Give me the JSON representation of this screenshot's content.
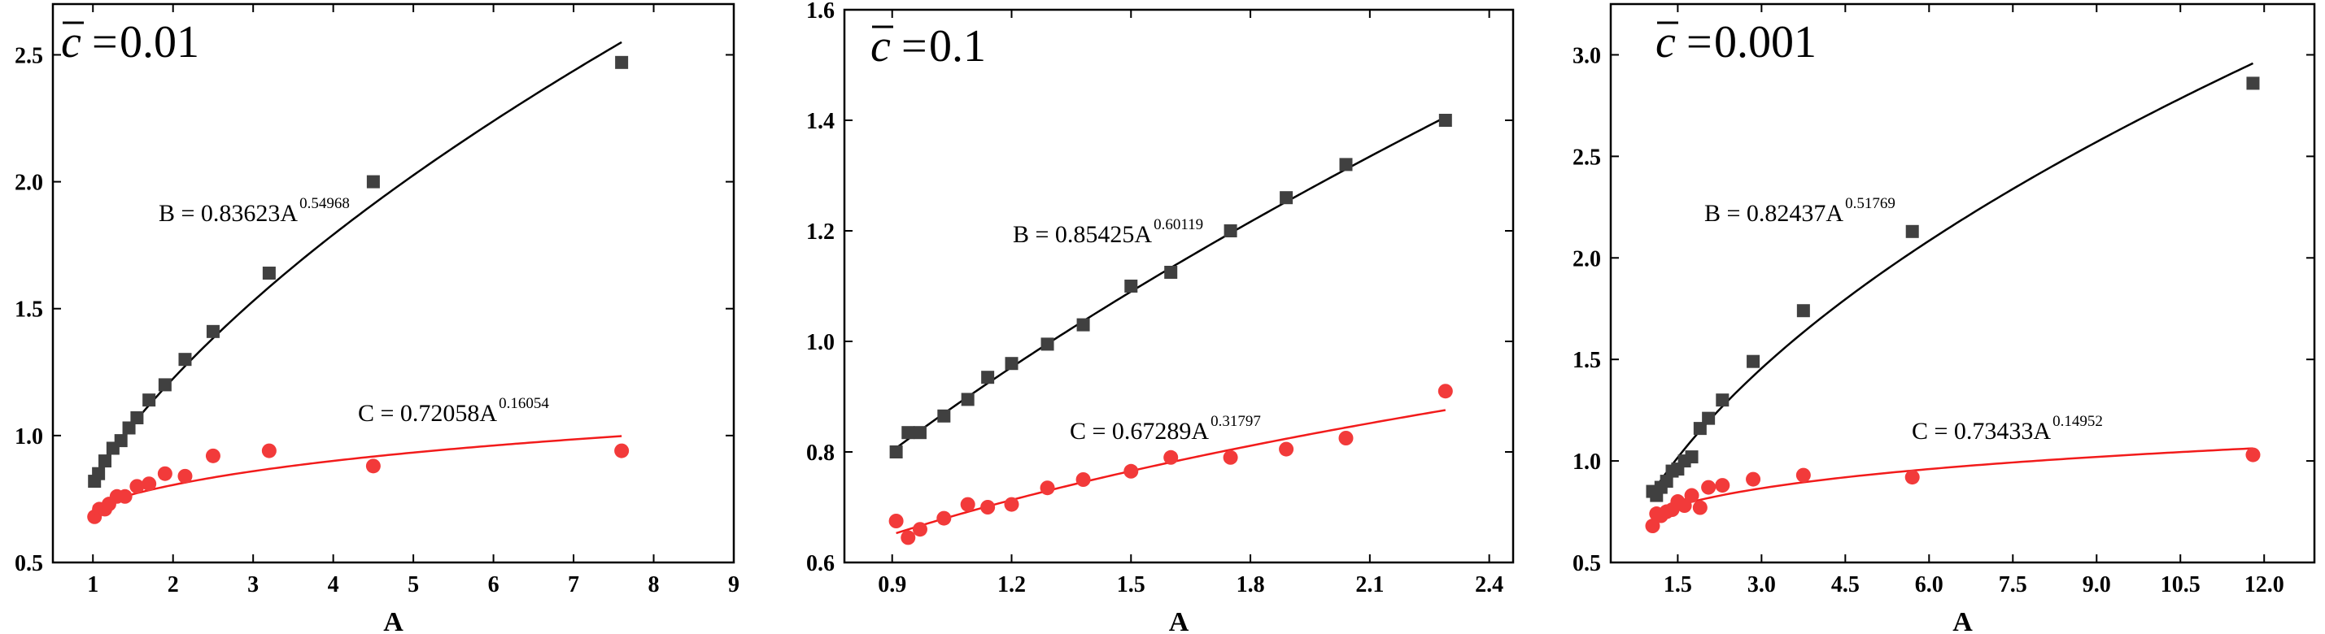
{
  "chart_data": [
    {
      "type": "scatter",
      "title": "0.01",
      "title_symbol": "c",
      "xlabel": "A",
      "ylabel": "",
      "xlim": [
        0.5,
        9.0
      ],
      "ylim": [
        0.5,
        2.7
      ],
      "xticks": [
        1,
        2,
        3,
        4,
        5,
        6,
        7,
        8,
        9
      ],
      "xtick_labels": [
        "1",
        "2",
        "3",
        "4",
        "5",
        "6",
        "7",
        "8",
        "9"
      ],
      "yticks": [
        0.5,
        1.0,
        1.5,
        2.0,
        2.5
      ],
      "ytick_labels": [
        "0.5",
        "1.0",
        "1.5",
        "2.0",
        "2.5"
      ],
      "series": [
        {
          "name": "B",
          "marker": "square",
          "color": "#404040",
          "x": [
            1.02,
            1.07,
            1.15,
            1.25,
            1.35,
            1.45,
            1.55,
            1.7,
            1.9,
            2.15,
            2.5,
            3.2,
            4.5,
            7.6
          ],
          "y": [
            0.82,
            0.85,
            0.9,
            0.95,
            0.98,
            1.03,
            1.07,
            1.14,
            1.2,
            1.3,
            1.41,
            1.64,
            2.0,
            2.47
          ],
          "fit": {
            "label": "B = 0.83623A",
            "exponent": "0.54968",
            "a": 0.83623,
            "b": 0.54968,
            "x_range": [
              1.0,
              7.6
            ],
            "color": "#000000"
          }
        },
        {
          "name": "C",
          "marker": "circle",
          "color": "#f23a3a",
          "x": [
            1.02,
            1.08,
            1.15,
            1.2,
            1.3,
            1.4,
            1.55,
            1.7,
            1.9,
            2.15,
            2.5,
            3.2,
            4.5,
            7.6
          ],
          "y": [
            0.68,
            0.71,
            0.71,
            0.73,
            0.76,
            0.76,
            0.8,
            0.81,
            0.85,
            0.84,
            0.92,
            0.94,
            0.88,
            0.94
          ],
          "fit": {
            "label": "C = 0.72058A",
            "exponent": "0.16054",
            "a": 0.72058,
            "b": 0.16054,
            "x_range": [
              1.0,
              7.6
            ],
            "color": "#f21b1b"
          }
        }
      ]
    },
    {
      "type": "scatter",
      "title": "0.1",
      "title_symbol": "c",
      "xlabel": "A",
      "ylabel": "",
      "xlim": [
        0.78,
        2.46
      ],
      "ylim": [
        0.6,
        1.6
      ],
      "xticks": [
        0.9,
        1.2,
        1.5,
        1.8,
        2.1,
        2.4
      ],
      "xtick_labels": [
        "0.9",
        "1.2",
        "1.5",
        "1.8",
        "2.1",
        "2.4"
      ],
      "yticks": [
        0.6,
        0.8,
        1.0,
        1.2,
        1.4,
        1.6
      ],
      "ytick_labels": [
        "0.6",
        "0.8",
        "1.0",
        "1.2",
        "1.4",
        "1.6"
      ],
      "series": [
        {
          "name": "B",
          "marker": "square",
          "color": "#404040",
          "x": [
            0.91,
            0.94,
            0.97,
            1.03,
            1.09,
            1.14,
            1.2,
            1.29,
            1.38,
            1.5,
            1.6,
            1.75,
            1.89,
            2.04,
            2.29
          ],
          "y": [
            0.8,
            0.835,
            0.835,
            0.865,
            0.895,
            0.935,
            0.96,
            0.995,
            1.03,
            1.1,
            1.125,
            1.2,
            1.26,
            1.32,
            1.4
          ],
          "fit": {
            "label": "B = 0.85425A",
            "exponent": "0.60119",
            "a": 0.85425,
            "b": 0.60119,
            "x_range": [
              0.91,
              2.29
            ],
            "color": "#000000"
          }
        },
        {
          "name": "C",
          "marker": "circle",
          "color": "#f23a3a",
          "x": [
            0.91,
            0.94,
            0.97,
            1.03,
            1.09,
            1.14,
            1.2,
            1.29,
            1.38,
            1.5,
            1.6,
            1.75,
            1.89,
            2.04,
            2.29
          ],
          "y": [
            0.675,
            0.645,
            0.66,
            0.68,
            0.705,
            0.7,
            0.705,
            0.735,
            0.75,
            0.765,
            0.79,
            0.79,
            0.805,
            0.825,
            0.91
          ],
          "fit": {
            "label": "C = 0.67289A",
            "exponent": "0.31797",
            "a": 0.67289,
            "b": 0.31797,
            "x_range": [
              0.91,
              2.29
            ],
            "color": "#f21b1b"
          }
        }
      ]
    },
    {
      "type": "scatter",
      "title": "0.001",
      "title_symbol": "c",
      "xlabel": "A",
      "ylabel": "",
      "xlim": [
        0.3,
        12.9
      ],
      "ylim": [
        0.5,
        3.25
      ],
      "xticks": [
        1.5,
        3.0,
        4.5,
        6.0,
        7.5,
        9.0,
        10.5,
        12.0
      ],
      "xtick_labels": [
        "1.5",
        "3.0",
        "4.5",
        "6.0",
        "7.5",
        "9.0",
        "10.5",
        "12.0"
      ],
      "yticks": [
        0.5,
        1.0,
        1.5,
        2.0,
        2.5,
        3.0
      ],
      "ytick_labels": [
        "0.5",
        "1.0",
        "1.5",
        "2.0",
        "2.5",
        "3.0"
      ],
      "series": [
        {
          "name": "B",
          "marker": "square",
          "color": "#404040",
          "x": [
            1.05,
            1.12,
            1.2,
            1.3,
            1.4,
            1.5,
            1.62,
            1.75,
            1.9,
            2.05,
            2.3,
            2.85,
            3.75,
            5.7,
            11.8
          ],
          "y": [
            0.85,
            0.83,
            0.87,
            0.9,
            0.95,
            0.96,
            1.0,
            1.02,
            1.16,
            1.21,
            1.3,
            1.49,
            1.74,
            2.13,
            2.86
          ],
          "fit": {
            "label": "B = 0.82437A",
            "exponent": "0.51769",
            "a": 0.82437,
            "b": 0.51769,
            "x_range": [
              1.0,
              11.8
            ],
            "color": "#000000"
          }
        },
        {
          "name": "C",
          "marker": "circle",
          "color": "#f23a3a",
          "x": [
            1.05,
            1.12,
            1.2,
            1.3,
            1.4,
            1.5,
            1.62,
            1.75,
            1.9,
            2.05,
            2.3,
            2.85,
            3.75,
            5.7,
            11.8
          ],
          "y": [
            0.68,
            0.74,
            0.73,
            0.75,
            0.76,
            0.8,
            0.78,
            0.83,
            0.77,
            0.87,
            0.88,
            0.91,
            0.93,
            0.92,
            1.03
          ],
          "fit": {
            "label": "C = 0.73433A",
            "exponent": "0.14952",
            "a": 0.73433,
            "b": 0.14952,
            "x_range": [
              1.0,
              11.8
            ],
            "color": "#f21b1b"
          }
        }
      ]
    }
  ]
}
